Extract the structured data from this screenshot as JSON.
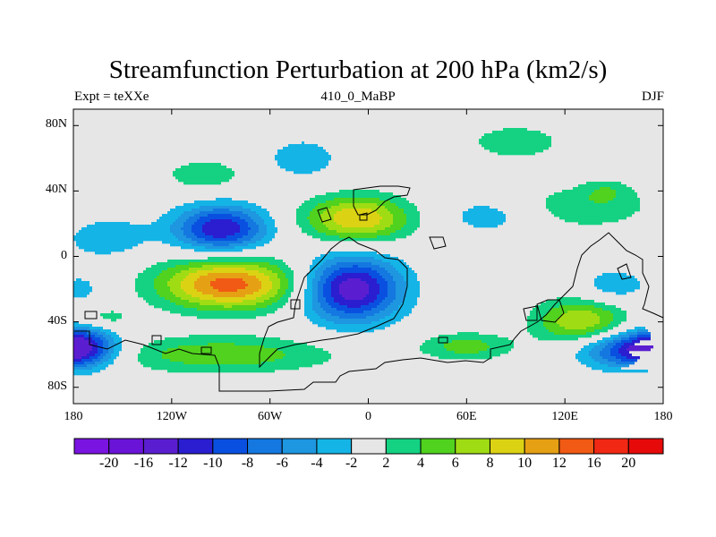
{
  "chart_data": {
    "type": "heatmap",
    "title": "Streamfunction Perturbation at 200 hPa (km2/s)",
    "subtitle_left": "Expt = teXXe",
    "subtitle_center": "410_0_MaBP",
    "subtitle_right": "DJF",
    "xlabel": "",
    "ylabel": "",
    "xlim": [
      -180,
      180
    ],
    "ylim": [
      -90,
      90
    ],
    "x_ticks": [
      {
        "value": -180,
        "label": "180"
      },
      {
        "value": -120,
        "label": "120W"
      },
      {
        "value": -60,
        "label": "60W"
      },
      {
        "value": 0,
        "label": "0"
      },
      {
        "value": 60,
        "label": "60E"
      },
      {
        "value": 120,
        "label": "120E"
      },
      {
        "value": 180,
        "label": "180"
      }
    ],
    "y_ticks": [
      {
        "value": 80,
        "label": "80N"
      },
      {
        "value": 40,
        "label": "40N"
      },
      {
        "value": 0,
        "label": "0"
      },
      {
        "value": -40,
        "label": "40S"
      },
      {
        "value": -80,
        "label": "80S"
      }
    ],
    "colorbar": {
      "levels": [
        -20,
        -16,
        -12,
        -10,
        -8,
        -6,
        -4,
        -2,
        2,
        4,
        6,
        8,
        10,
        12,
        16,
        20
      ],
      "labels": [
        "-20",
        "-16",
        "-12",
        "-10",
        "-8",
        "-6",
        "-4",
        "-2",
        "2",
        "4",
        "6",
        "8",
        "10",
        "12",
        "16",
        "20"
      ],
      "colors": [
        "#7a14e0",
        "#6a14d8",
        "#5a1ed0",
        "#2a1ed0",
        "#0a50e0",
        "#1478e0",
        "#1e96e0",
        "#14b4e6",
        "#e6e6e6",
        "#14d282",
        "#50d21e",
        "#a0dc14",
        "#dcd214",
        "#e6a014",
        "#f05a14",
        "#f02814",
        "#e60a0a"
      ]
    },
    "anomalies": [
      {
        "lon": -90,
        "lat": 17,
        "peak": -12,
        "slon": 20,
        "slat": 10
      },
      {
        "lon": -7,
        "lat": 23,
        "peak": 10,
        "slon": 23,
        "slat": 10
      },
      {
        "lon": -85,
        "lat": -17,
        "peak": 13,
        "slon": 30,
        "slat": 11
      },
      {
        "lon": -10,
        "lat": -20,
        "peak": -14,
        "slon": 21,
        "slat": 14
      },
      {
        "lon": 130,
        "lat": -40,
        "peak": 8,
        "slon": 20,
        "slat": 10
      },
      {
        "lon": 165,
        "lat": -57,
        "peak": -12,
        "slon": 24,
        "slat": 8
      },
      {
        "lon": -175,
        "lat": -55,
        "peak": -8,
        "slon": 15,
        "slat": 9
      },
      {
        "lon": -90,
        "lat": -60,
        "peak": 5.5,
        "slon": 50,
        "slat": 8
      },
      {
        "lon": 60,
        "lat": -55,
        "peak": 5,
        "slon": 20,
        "slat": 6
      },
      {
        "lon": 90,
        "lat": 70,
        "peak": 3,
        "slon": 25,
        "slat": 9
      },
      {
        "lon": -40,
        "lat": 60,
        "peak": -3.5,
        "slon": 16,
        "slat": 9
      },
      {
        "lon": -100,
        "lat": 50,
        "peak": 3.5,
        "slon": 18,
        "slat": 7
      },
      {
        "lon": 130,
        "lat": 30,
        "peak": 3.5,
        "slon": 35,
        "slat": 10
      },
      {
        "lon": 75,
        "lat": 25,
        "peak": -3.5,
        "slon": 22,
        "slat": 9
      },
      {
        "lon": -160,
        "lat": 12,
        "peak": -4,
        "slon": 18,
        "slat": 9
      },
      {
        "lon": 150,
        "lat": -18,
        "peak": -3.5,
        "slon": 15,
        "slat": 8
      },
      {
        "lon": -175,
        "lat": -20,
        "peak": -3,
        "slon": 8,
        "slat": 6
      },
      {
        "lon": -160,
        "lat": -38,
        "peak": 3,
        "slon": 12,
        "slat": 5
      },
      {
        "lon": 145,
        "lat": 40,
        "peak": 2.6,
        "slon": 10,
        "slat": 5
      }
    ]
  }
}
